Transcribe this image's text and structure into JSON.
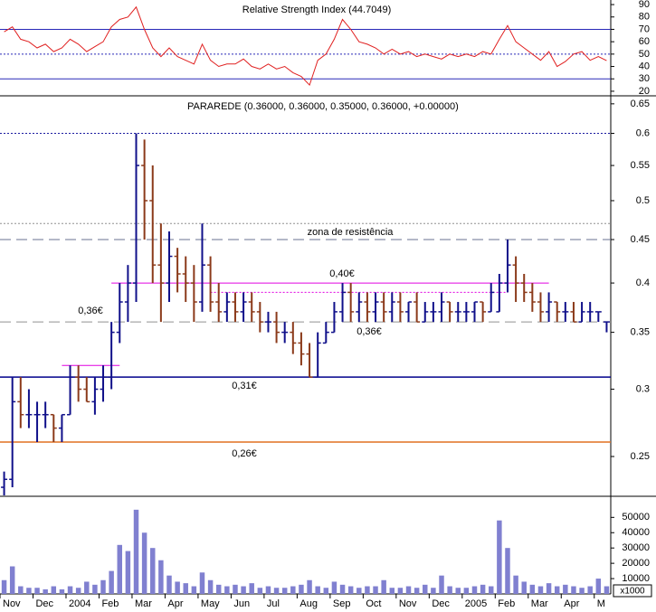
{
  "chart_data": [
    {
      "type": "line",
      "title": "Relative Strength Index (44.7049)",
      "color": "#e02020",
      "values": [
        68,
        72,
        62,
        60,
        55,
        58,
        52,
        55,
        62,
        58,
        52,
        56,
        60,
        72,
        78,
        80,
        88,
        70,
        55,
        48,
        55,
        48,
        45,
        42,
        58,
        45,
        40,
        42,
        42,
        46,
        40,
        38,
        42,
        38,
        40,
        35,
        32,
        25,
        45,
        50,
        62,
        78,
        70,
        60,
        58,
        55,
        50,
        54,
        50,
        52,
        48,
        50,
        48,
        46,
        50,
        48,
        50,
        48,
        52,
        50,
        62,
        73,
        60,
        55,
        50,
        45,
        52,
        40,
        44,
        50,
        52,
        45,
        48,
        44.7049
      ],
      "ylim": [
        16.3,
        93.7
      ],
      "yticks": [
        20,
        30,
        40,
        50,
        60,
        70,
        80,
        90
      ],
      "levels": [
        {
          "value": 70,
          "style": "solid"
        },
        {
          "value": 50,
          "style": "dotted"
        },
        {
          "value": 30,
          "style": "solid"
        }
      ],
      "level_color": "#2828b8"
    },
    {
      "type": "ohlc",
      "title": "PARAREDE (0.36000, 0.36000, 0.35000, 0.36000, +0.00000)",
      "up_color": "#10108a",
      "down_color": "#8b3a1a",
      "log": true,
      "open": [
        0.23,
        0.235,
        0.29,
        0.28,
        0.28,
        0.28,
        0.28,
        0.27,
        0.28,
        0.31,
        0.3,
        0.29,
        0.3,
        0.31,
        0.35,
        0.38,
        0.4,
        0.55,
        0.5,
        0.42,
        0.4,
        0.43,
        0.41,
        0.4,
        0.38,
        0.42,
        0.38,
        0.37,
        0.38,
        0.37,
        0.38,
        0.37,
        0.36,
        0.36,
        0.35,
        0.35,
        0.34,
        0.33,
        0.31,
        0.34,
        0.35,
        0.37,
        0.39,
        0.37,
        0.38,
        0.37,
        0.38,
        0.37,
        0.38,
        0.37,
        0.38,
        0.36,
        0.37,
        0.37,
        0.38,
        0.37,
        0.37,
        0.37,
        0.38,
        0.37,
        0.37,
        0.4,
        0.42,
        0.4,
        0.39,
        0.38,
        0.37,
        0.38,
        0.37,
        0.37,
        0.36,
        0.37,
        0.37,
        0.36
      ],
      "high": [
        0.24,
        0.31,
        0.31,
        0.3,
        0.29,
        0.29,
        0.28,
        0.28,
        0.32,
        0.32,
        0.31,
        0.31,
        0.32,
        0.36,
        0.4,
        0.42,
        0.6,
        0.59,
        0.55,
        0.47,
        0.46,
        0.44,
        0.43,
        0.42,
        0.47,
        0.43,
        0.4,
        0.39,
        0.39,
        0.39,
        0.39,
        0.38,
        0.37,
        0.37,
        0.36,
        0.36,
        0.35,
        0.34,
        0.35,
        0.36,
        0.38,
        0.4,
        0.4,
        0.39,
        0.39,
        0.39,
        0.39,
        0.39,
        0.39,
        0.38,
        0.39,
        0.38,
        0.38,
        0.39,
        0.38,
        0.38,
        0.38,
        0.38,
        0.38,
        0.4,
        0.41,
        0.45,
        0.43,
        0.41,
        0.4,
        0.39,
        0.39,
        0.38,
        0.38,
        0.38,
        0.38,
        0.38,
        0.37,
        0.36
      ],
      "low": [
        0.225,
        0.23,
        0.27,
        0.27,
        0.26,
        0.27,
        0.26,
        0.26,
        0.28,
        0.29,
        0.29,
        0.28,
        0.29,
        0.3,
        0.34,
        0.36,
        0.38,
        0.45,
        0.4,
        0.36,
        0.38,
        0.39,
        0.38,
        0.36,
        0.37,
        0.37,
        0.36,
        0.36,
        0.36,
        0.36,
        0.36,
        0.35,
        0.35,
        0.34,
        0.34,
        0.33,
        0.32,
        0.31,
        0.31,
        0.34,
        0.35,
        0.36,
        0.36,
        0.36,
        0.36,
        0.36,
        0.36,
        0.36,
        0.36,
        0.36,
        0.36,
        0.36,
        0.36,
        0.36,
        0.36,
        0.36,
        0.36,
        0.36,
        0.36,
        0.37,
        0.37,
        0.39,
        0.38,
        0.38,
        0.37,
        0.36,
        0.36,
        0.36,
        0.36,
        0.36,
        0.36,
        0.36,
        0.36,
        0.35
      ],
      "close": [
        0.235,
        0.29,
        0.28,
        0.28,
        0.28,
        0.28,
        0.27,
        0.28,
        0.31,
        0.3,
        0.29,
        0.3,
        0.31,
        0.35,
        0.38,
        0.4,
        0.55,
        0.5,
        0.42,
        0.4,
        0.43,
        0.41,
        0.4,
        0.38,
        0.42,
        0.38,
        0.37,
        0.38,
        0.37,
        0.38,
        0.37,
        0.36,
        0.36,
        0.35,
        0.35,
        0.34,
        0.33,
        0.31,
        0.34,
        0.35,
        0.37,
        0.39,
        0.37,
        0.38,
        0.37,
        0.38,
        0.37,
        0.38,
        0.37,
        0.38,
        0.36,
        0.37,
        0.37,
        0.38,
        0.37,
        0.37,
        0.37,
        0.38,
        0.37,
        0.39,
        0.4,
        0.42,
        0.4,
        0.39,
        0.38,
        0.37,
        0.38,
        0.37,
        0.37,
        0.36,
        0.37,
        0.37,
        0.37,
        0.36
      ],
      "ylim": [
        0.225,
        0.661
      ],
      "yticks": [
        0.25,
        0.3,
        0.35,
        0.4,
        0.45,
        0.5,
        0.55,
        0.6,
        0.65
      ],
      "lines": [
        {
          "value": 0.6,
          "style": "dotted",
          "color": "#1a1aa0"
        },
        {
          "value": 0.47,
          "style": "dotted",
          "color": "#909090"
        },
        {
          "value": 0.45,
          "style": "dashed",
          "color": "#6a7090"
        },
        {
          "value": 0.36,
          "style": "dashed",
          "color": "#909090"
        },
        {
          "value": 0.31,
          "style": "solid",
          "color": "#00008b"
        },
        {
          "value": 0.26,
          "style": "solid",
          "color": "#e07020"
        }
      ],
      "segments": [
        {
          "value": 0.32,
          "start": 7,
          "end": 14,
          "color": "#e000e0",
          "style": "solid"
        },
        {
          "value": 0.4,
          "start": 13,
          "end": 66,
          "color": "#e000e0",
          "style": "solid"
        },
        {
          "value": 0.39,
          "start": 25,
          "end": 61,
          "color": "#e000e0",
          "style": "dotted"
        }
      ],
      "annotations": [
        {
          "text": "0,36€",
          "value": 0.36,
          "color": "#909090"
        },
        {
          "text": "0,36€",
          "value": 0.36,
          "color": "#909090"
        },
        {
          "text": "0,40€",
          "value": 0.4,
          "color": "#e000e0"
        },
        {
          "text": "0,31€",
          "value": 0.31,
          "color": "#0000c0"
        },
        {
          "text": "0,26€",
          "value": 0.26,
          "color": "#d01010"
        },
        {
          "text": "zona de resistência",
          "value": 0.45,
          "color": "#909090"
        }
      ]
    },
    {
      "type": "volume",
      "color": "#8080d0",
      "multiplier_label": "x1000",
      "categories": [
        "Nov",
        null,
        null,
        null,
        "Dec",
        null,
        null,
        null,
        "2004",
        null,
        null,
        null,
        "Feb",
        null,
        null,
        null,
        "Mar",
        null,
        null,
        null,
        "Apr",
        null,
        null,
        null,
        "May",
        null,
        null,
        null,
        "Jun",
        null,
        null,
        null,
        "Jul",
        null,
        null,
        null,
        "Aug",
        null,
        null,
        null,
        "Sep",
        null,
        null,
        null,
        "Oct",
        null,
        null,
        null,
        "Nov",
        null,
        null,
        null,
        "Dec",
        null,
        null,
        null,
        "2005",
        null,
        null,
        null,
        "Feb",
        null,
        null,
        null,
        "Mar",
        null,
        null,
        null,
        "Apr",
        null,
        null,
        null,
        "M",
        null
      ],
      "values": [
        9000,
        18000,
        5000,
        4000,
        4000,
        3000,
        5000,
        3000,
        5000,
        4000,
        8000,
        6000,
        9000,
        15000,
        32000,
        28000,
        55000,
        40000,
        30000,
        22000,
        12000,
        8000,
        7000,
        5000,
        14000,
        9000,
        6000,
        5000,
        6000,
        5000,
        7000,
        4000,
        5000,
        4000,
        4000,
        5000,
        6000,
        9000,
        5000,
        4000,
        8000,
        6000,
        5000,
        4000,
        5000,
        5000,
        9000,
        4000,
        4000,
        5000,
        4000,
        6000,
        4000,
        12000,
        5000,
        4000,
        4000,
        5000,
        6000,
        5000,
        48000,
        30000,
        12000,
        8000,
        6000,
        5000,
        7000,
        5000,
        6000,
        5000,
        4000,
        5000,
        10000,
        5000
      ],
      "ylim": [
        0,
        62000
      ],
      "yticks": [
        10000,
        20000,
        30000,
        40000,
        50000
      ]
    }
  ]
}
